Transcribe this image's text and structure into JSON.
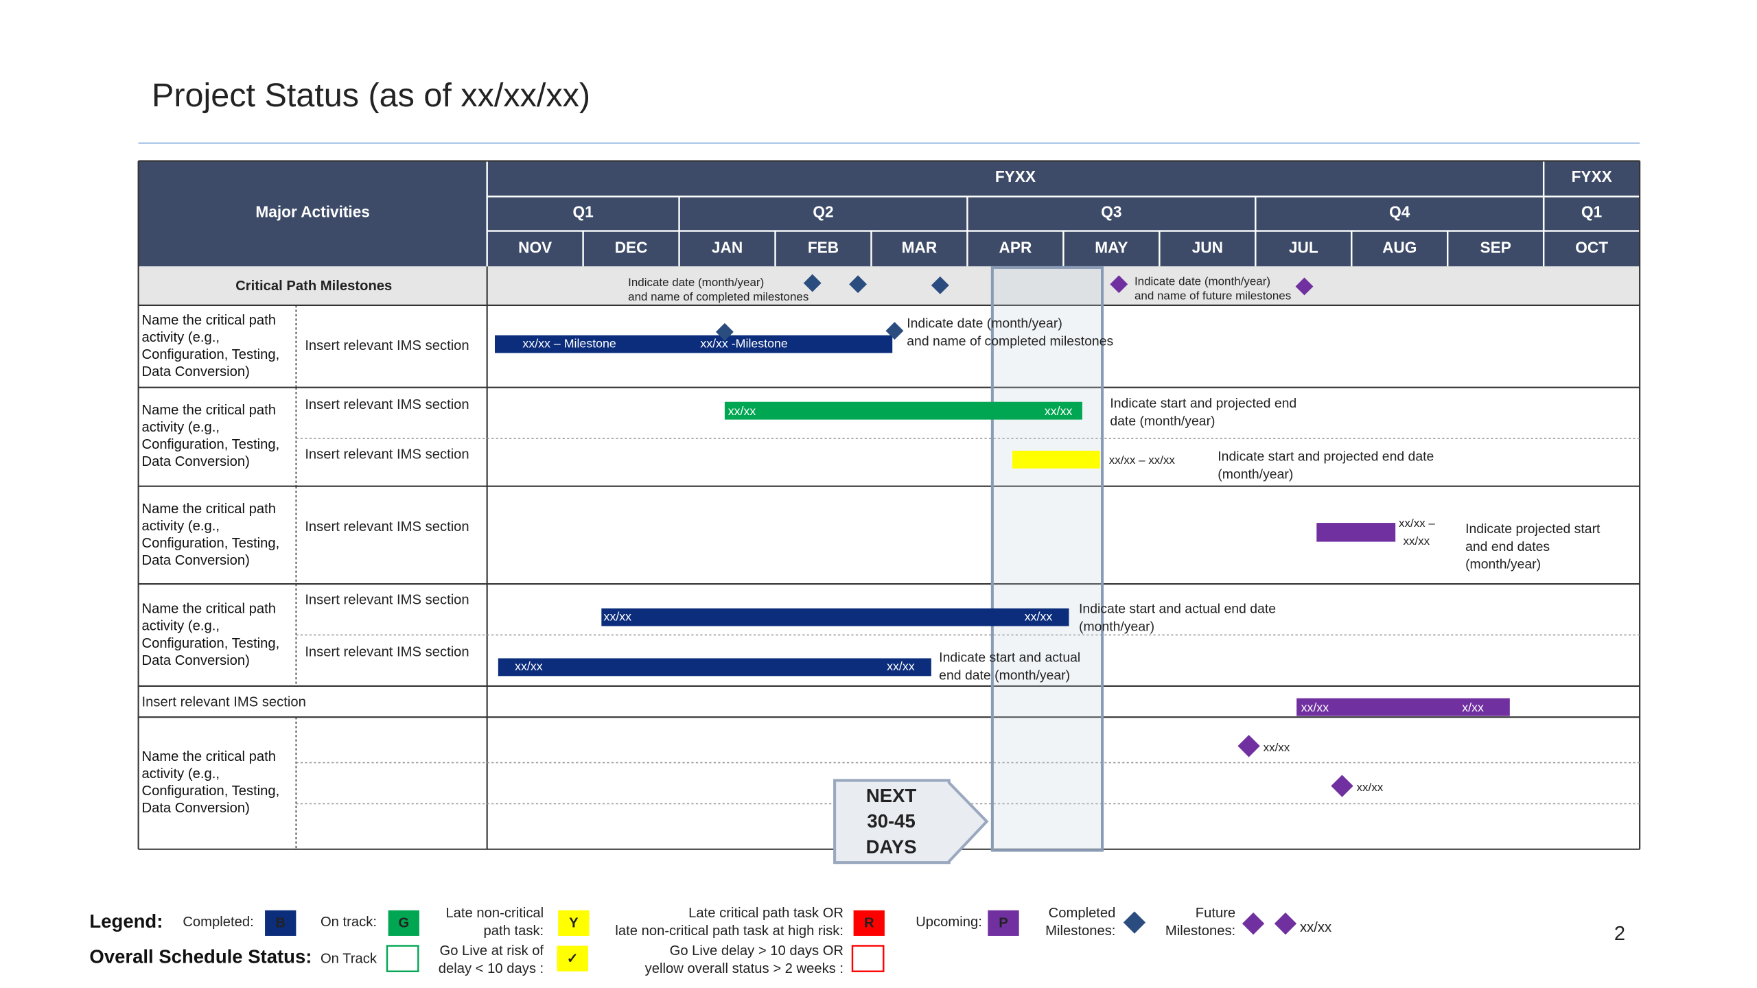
{
  "title": "Project Status (as of xx/xx/xx)",
  "page_number": "2",
  "table": {
    "header": {
      "activities": "Major Activities",
      "fiscal_years": [
        "FYXX",
        "FYXX"
      ],
      "quarters": [
        "Q1",
        "Q2",
        "Q3",
        "Q4",
        "Q1"
      ],
      "months": [
        "NOV",
        "DEC",
        "JAN",
        "FEB",
        "MAR",
        "APR",
        "MAY",
        "JUN",
        "JUL",
        "AUG",
        "SEP",
        "OCT"
      ]
    },
    "milestones_row": {
      "label": "Critical Path Milestones",
      "completed_note": [
        "Indicate date (month/year)",
        "and name of completed milestones"
      ],
      "future_note": [
        "Indicate date (month/year)",
        "and name of future milestones"
      ]
    },
    "rows": [
      {
        "activity": [
          "Name the critical path",
          "activity (e.g.,",
          "Configuration, Testing,",
          "Data Conversion)"
        ],
        "sections": [
          "Insert relevant IMS section"
        ],
        "bar_labels": [
          "xx/xx – Milestone",
          "xx/xx -Milestone"
        ],
        "notes": [
          [
            "Indicate date (month/year)",
            "and name of completed milestones"
          ]
        ]
      },
      {
        "activity": [
          "Name the critical path",
          "activity (e.g.,",
          "Configuration, Testing,",
          "Data Conversion)"
        ],
        "sections": [
          "Insert relevant IMS section",
          "Insert relevant IMS section"
        ],
        "bar_labels": [
          "xx/xx",
          "xx/xx",
          "xx/xx – xx/xx"
        ],
        "notes": [
          [
            "Indicate start and projected end",
            "date (month/year)"
          ],
          [
            "Indicate start and projected end date",
            "(month/year)"
          ]
        ]
      },
      {
        "activity": [
          "Name the critical path",
          "activity (e.g.,",
          "Configuration, Testing,",
          "Data Conversion)"
        ],
        "sections": [
          "Insert relevant IMS section"
        ],
        "bar_labels": [
          "xx/xx –",
          "xx/xx"
        ],
        "notes": [
          [
            "Indicate projected start",
            "and end dates",
            "(month/year)"
          ]
        ]
      },
      {
        "activity": [
          "Name the critical path",
          "activity (e.g.,",
          "Configuration, Testing,",
          "Data Conversion)"
        ],
        "sections": [
          "Insert relevant IMS section",
          "Insert relevant IMS section"
        ],
        "bar_labels": [
          "xx/xx",
          "xx/xx",
          "xx/xx",
          "xx/xx"
        ],
        "notes": [
          [
            "Indicate start and actual end date",
            "(month/year)"
          ],
          [
            "Indicate start and actual",
            "end date (month/year)"
          ]
        ]
      },
      {
        "sections": [
          "Insert relevant IMS section"
        ],
        "bar_labels": [
          "xx/xx",
          "x/xx"
        ]
      },
      {
        "activity": [
          "Name the critical path",
          "activity (e.g.,",
          "Configuration, Testing,",
          "Data Conversion)"
        ],
        "milestone_labels": [
          "xx/xx",
          "xx/xx"
        ]
      }
    ]
  },
  "callout": [
    "NEXT",
    "30-45",
    "DAYS"
  ],
  "legend": {
    "title": "Legend:",
    "items": [
      {
        "label": [
          "Completed:"
        ],
        "code": "B"
      },
      {
        "label": [
          "On track:"
        ],
        "code": "G"
      },
      {
        "label": [
          "Late non-critical",
          "path task:"
        ],
        "code": "Y"
      },
      {
        "label": [
          "Late critical path task OR",
          "late non-critical path task at high risk:"
        ],
        "code": "R"
      },
      {
        "label": [
          "Upcoming:"
        ],
        "code": "P"
      },
      {
        "label": [
          "Completed",
          "Milestones:"
        ]
      },
      {
        "label": [
          "Future",
          "Milestones:"
        ],
        "note": "xx/xx"
      }
    ],
    "status_title": "Overall Schedule Status:",
    "status_items": [
      {
        "label": [
          "On Track"
        ]
      },
      {
        "label": [
          "Go Live at risk of",
          "delay < 10 days :"
        ],
        "code": "✓"
      },
      {
        "label": [
          "Go Live delay > 10 days OR",
          "yellow overall status > 2 weeks :"
        ]
      }
    ]
  }
}
